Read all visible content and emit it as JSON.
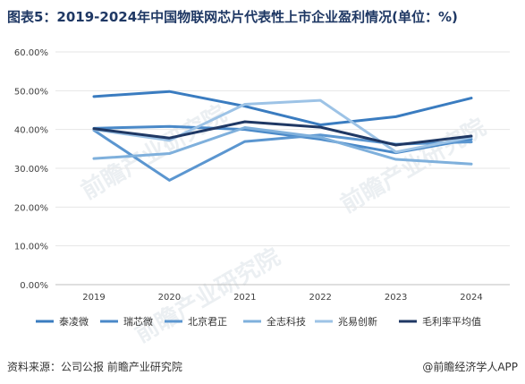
{
  "title": "图表5：2019-2024年中国物联网芯片代表性上市企业盈利情况(单位：%)",
  "footer": {
    "source": "资料来源：公司公报  前瞻产业研究院",
    "brand": "@前瞻经济学人APP"
  },
  "watermark": "前瞻产业研究院",
  "chart_data": {
    "type": "line",
    "title": "图表5：2019-2024年中国物联网芯片代表性上市企业盈利情况(单位：%)",
    "x": [
      "2019",
      "2020",
      "2021",
      "2022",
      "2023",
      "2024"
    ],
    "ylim": [
      0,
      60
    ],
    "yticks": [
      "0.00%",
      "10.00%",
      "20.00%",
      "30.00%",
      "40.00%",
      "50.00%",
      "60.00%"
    ],
    "grid": true,
    "legend_position": "bottom",
    "series": [
      {
        "name": "泰凌微",
        "color": "#3a7cc0",
        "values": [
          48.5,
          49.8,
          46.0,
          41.2,
          43.3,
          48.1
        ]
      },
      {
        "name": "瑞芯微",
        "color": "#4a89c8",
        "values": [
          40.3,
          40.8,
          40.0,
          37.5,
          34.0,
          37.5
        ]
      },
      {
        "name": "北京君正",
        "color": "#5b96d0",
        "values": [
          39.8,
          26.9,
          36.9,
          38.6,
          36.2,
          36.8
        ]
      },
      {
        "name": "全志科技",
        "color": "#7fb0dc",
        "values": [
          32.5,
          33.8,
          40.5,
          38.0,
          32.3,
          31.1
        ]
      },
      {
        "name": "兆易创新",
        "color": "#9dc3e6",
        "values": [
          40.0,
          37.2,
          46.5,
          47.5,
          34.2,
          38.0
        ]
      },
      {
        "name": "毛利率平均值",
        "color": "#1f3864",
        "values": [
          40.2,
          37.8,
          42.0,
          40.6,
          36.0,
          38.3
        ]
      }
    ]
  }
}
